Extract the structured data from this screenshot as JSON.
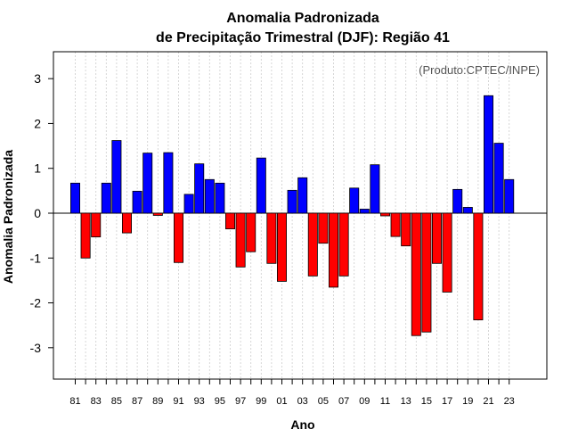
{
  "chart_data": {
    "type": "bar",
    "title_line1": "Anomalia Padronizada",
    "title_line2": "de Precipitação Trimestral (DJF): Região 41",
    "xlabel": "Ano",
    "ylabel": "Anomalia Padronizada",
    "credit": "(Produto:CPTEC/INPE)",
    "ylim": [
      -3.7,
      3.6
    ],
    "yticks": [
      -3,
      -2,
      -1,
      0,
      1,
      2,
      3
    ],
    "ytick_labels": [
      "-3",
      "-2",
      "-1",
      "0",
      "1",
      "2",
      "3"
    ],
    "xtick_labels": [
      "81",
      "83",
      "85",
      "87",
      "89",
      "91",
      "93",
      "95",
      "97",
      "99",
      "01",
      "03",
      "05",
      "07",
      "09",
      "11",
      "13",
      "15",
      "17",
      "19",
      "21",
      "23"
    ],
    "positive_color": "#0000ff",
    "negative_color": "#ff0000",
    "categories": [
      "81",
      "82",
      "83",
      "84",
      "85",
      "86",
      "87",
      "88",
      "89",
      "90",
      "91",
      "92",
      "93",
      "94",
      "95",
      "96",
      "97",
      "98",
      "99",
      "00",
      "01",
      "02",
      "03",
      "04",
      "05",
      "06",
      "07",
      "08",
      "09",
      "10",
      "11",
      "12",
      "13",
      "14",
      "15",
      "16",
      "17",
      "18",
      "19",
      "20",
      "21",
      "22",
      "23"
    ],
    "values": [
      0.67,
      -1.0,
      -0.53,
      0.67,
      1.62,
      -0.44,
      0.49,
      1.34,
      -0.05,
      1.35,
      -1.1,
      0.42,
      1.1,
      0.75,
      0.67,
      -0.35,
      -1.2,
      -0.86,
      1.23,
      -1.12,
      -1.52,
      0.51,
      0.79,
      -1.4,
      -0.67,
      -1.65,
      -1.4,
      0.56,
      0.09,
      1.08,
      -0.06,
      -0.52,
      -0.73,
      -2.73,
      -2.65,
      -1.12,
      -1.76,
      0.53,
      0.13,
      -2.38,
      2.62,
      1.56,
      0.75
    ]
  }
}
